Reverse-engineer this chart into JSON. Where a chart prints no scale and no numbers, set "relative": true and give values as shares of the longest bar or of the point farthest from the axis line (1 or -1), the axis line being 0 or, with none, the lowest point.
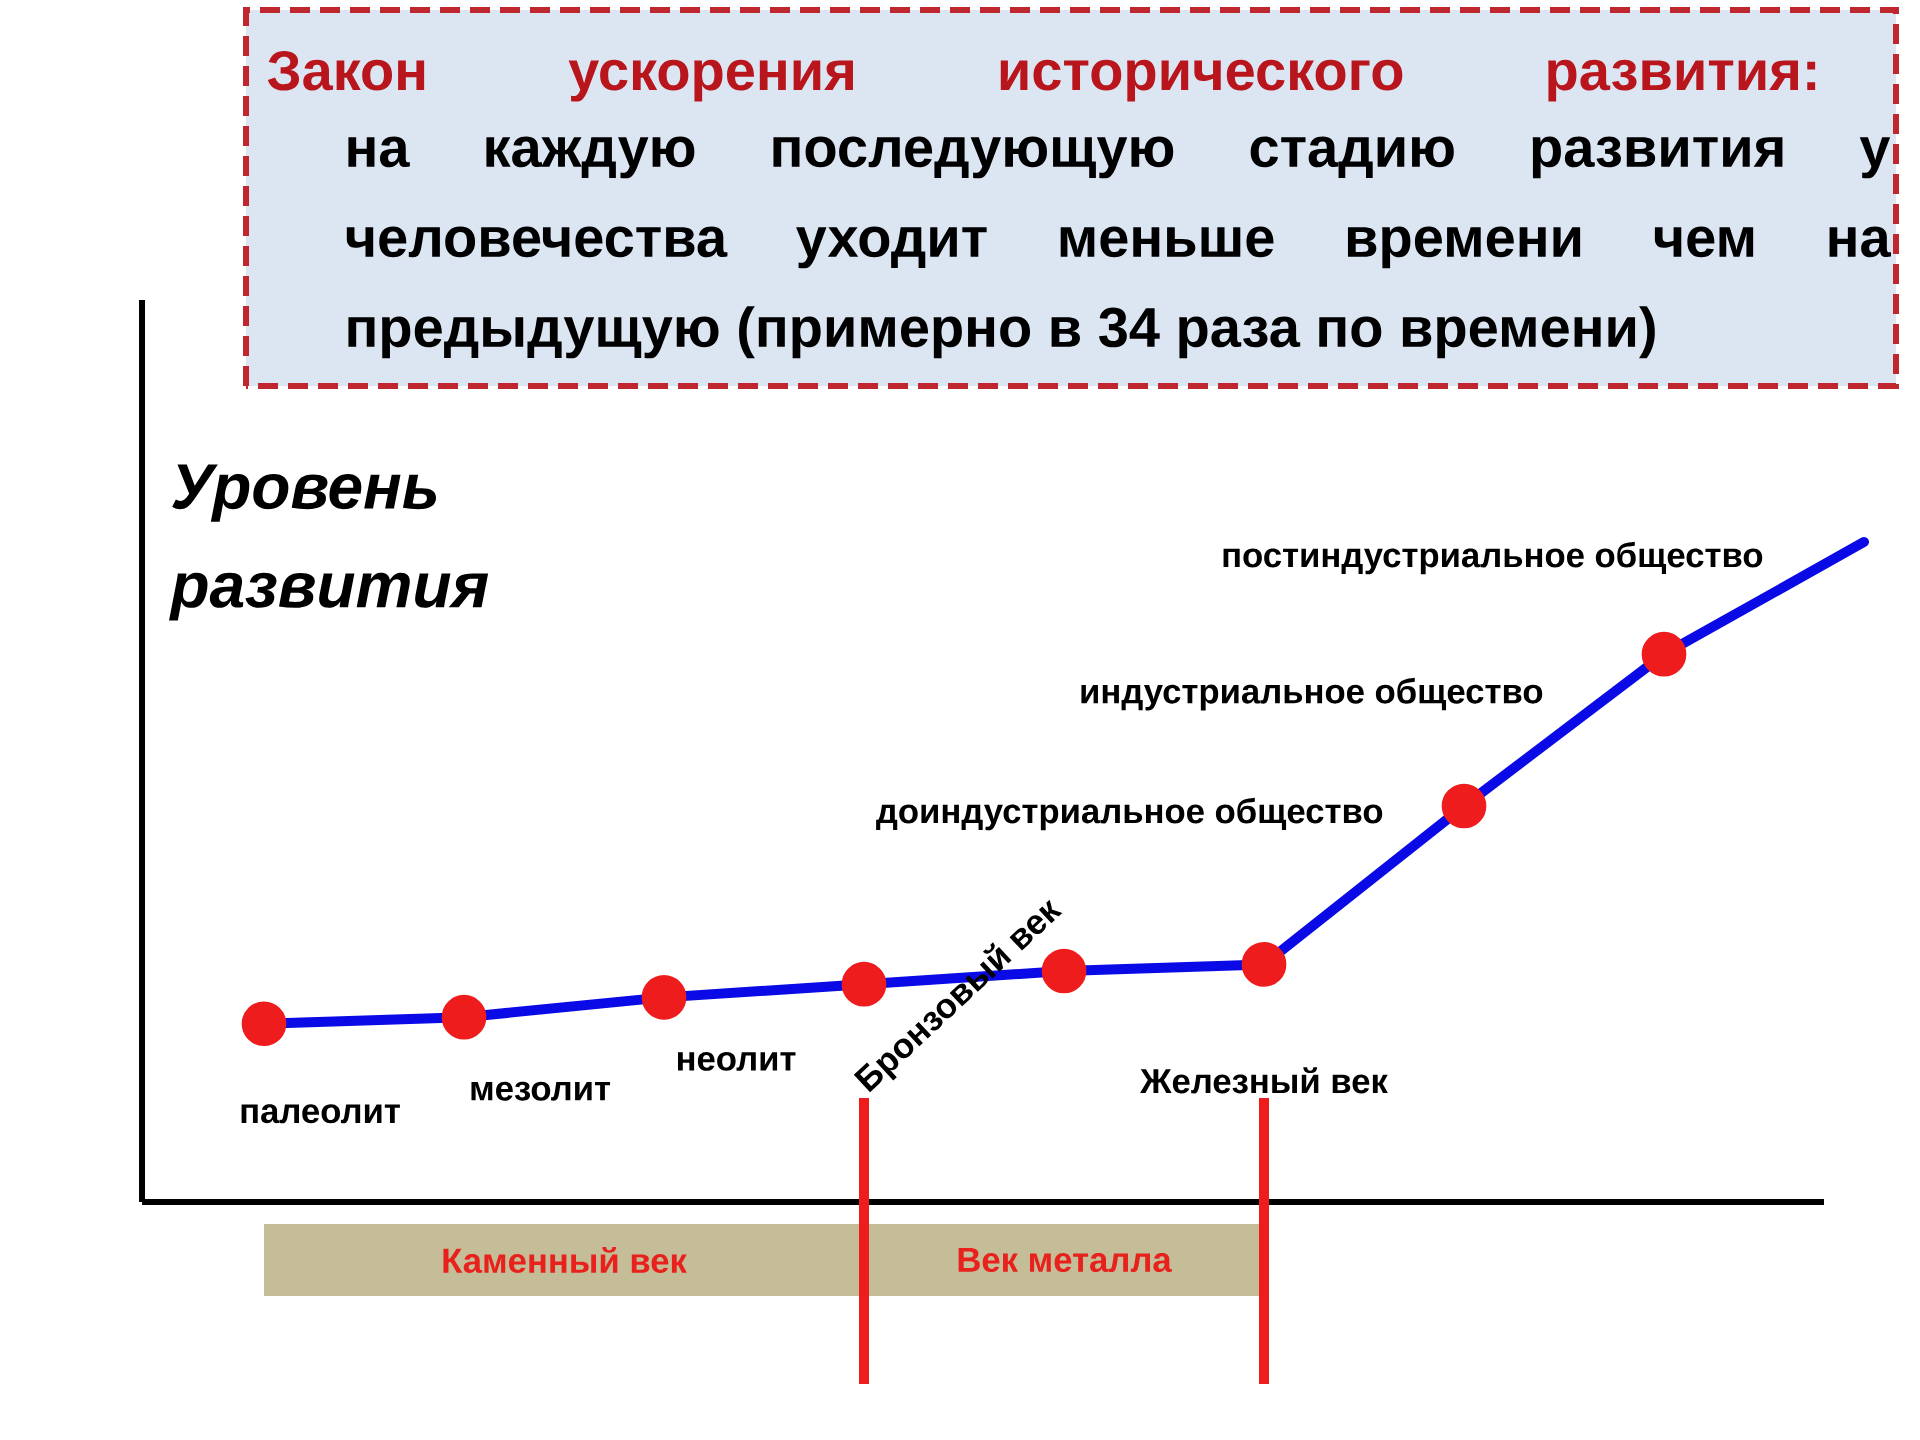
{
  "chart_data": {
    "type": "line",
    "title": "Закон ускорения исторического развития:",
    "subtitle": "на каждую последующую стадию развития у человечества уходит меньше времени чем на предыдущую (примерно в 34 раза по времени)",
    "ylabel": "Уровень развития",
    "relative": true,
    "marker": "circle",
    "categories": [
      null,
      null,
      null,
      null,
      null,
      null,
      null,
      null,
      null
    ],
    "series": [
      {
        "color": "#0a0ae6",
        "colors": [
          "#ee1c1c",
          "#ee1c1c",
          "#ee1c1c",
          "#ee1c1c",
          "#ee1c1c",
          "#ee1c1c",
          "#ee1c1c",
          "#ee1c1c",
          null
        ],
        "values": [
          0.27,
          0.28,
          0.31,
          0.33,
          0.35,
          0.36,
          0.6,
          0.83,
          1
        ]
      }
    ],
    "annotations": [
      "палеолит",
      "мезолит",
      "неолит",
      "Бронзовый век",
      "Железный век",
      "доиндустриальное общество",
      "индустриальное общество",
      "постиндустриальное общество",
      "Каменный век",
      "Век металла"
    ]
  }
}
